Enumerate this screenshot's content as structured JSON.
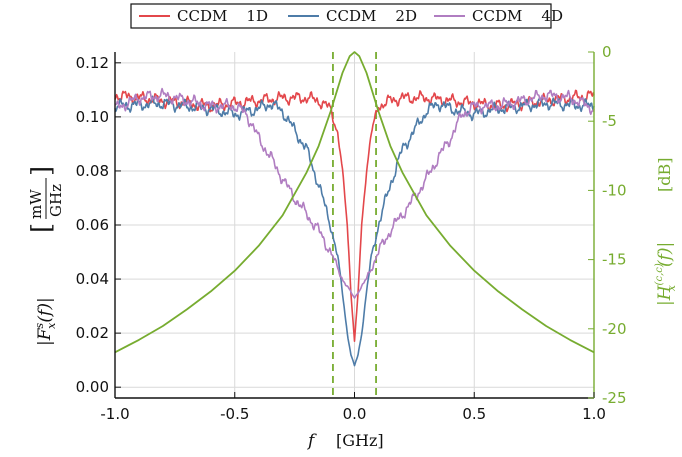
{
  "chart_data": {
    "type": "line",
    "x_range": [
      -1.0,
      1.0
    ],
    "x_ticks": [
      "-1.0",
      "-0.5",
      "0.0",
      "0.5",
      "1.0"
    ],
    "x_tick_values": [
      -1.0,
      -0.5,
      0.0,
      0.5,
      1.0
    ],
    "xlabel_var": "f",
    "xlabel_unit": "[GHz]",
    "y_left": {
      "range": [
        -0.004,
        0.124
      ],
      "ticks": [
        "0.00",
        "0.02",
        "0.04",
        "0.06",
        "0.08",
        "0.10",
        "0.12"
      ],
      "tick_values": [
        0.0,
        0.02,
        0.04,
        0.06,
        0.08,
        0.1,
        0.12
      ],
      "label_function": "|F",
      "label_sup": "s",
      "label_sub": "x",
      "label_arg": "(f)|",
      "unit_num": "mW",
      "unit_den": "GHz"
    },
    "y_right": {
      "range": [
        -25,
        0
      ],
      "ticks": [
        "0",
        "-5",
        "-10",
        "-15",
        "-20",
        "-25"
      ],
      "tick_values": [
        0,
        -5,
        -10,
        -15,
        -20,
        -25
      ],
      "label_function": "|H",
      "label_sup": "(c,c)",
      "label_sub": "x",
      "label_arg": "(f)|",
      "unit": "[dB]",
      "color": "#77ac30"
    },
    "grid": true,
    "legend_position": "top",
    "series": [
      {
        "name": "CCDM    1D",
        "color": "#e3474b",
        "axis": "left",
        "x": [
          -1.0,
          -0.8,
          -0.6,
          -0.4,
          -0.3,
          -0.2,
          -0.15,
          -0.1,
          -0.07,
          -0.05,
          -0.03,
          -0.015,
          0.0,
          0.015,
          0.03,
          0.05,
          0.07,
          0.1,
          0.15,
          0.2,
          0.3,
          0.4,
          0.6,
          0.8,
          1.0
        ],
        "y": [
          0.108,
          0.106,
          0.104,
          0.106,
          0.107,
          0.107,
          0.106,
          0.103,
          0.094,
          0.08,
          0.06,
          0.035,
          0.017,
          0.035,
          0.06,
          0.08,
          0.094,
          0.104,
          0.106,
          0.107,
          0.107,
          0.106,
          0.104,
          0.106,
          0.108
        ]
      },
      {
        "name": "CCDM    2D",
        "color": "#4e7ca8",
        "axis": "left",
        "x": [
          -1.0,
          -0.8,
          -0.6,
          -0.5,
          -0.4,
          -0.35,
          -0.3,
          -0.25,
          -0.2,
          -0.15,
          -0.1,
          -0.07,
          -0.05,
          -0.03,
          -0.015,
          0.0,
          0.015,
          0.03,
          0.05,
          0.07,
          0.1,
          0.15,
          0.2,
          0.25,
          0.3,
          0.35,
          0.4,
          0.5,
          0.6,
          0.8,
          1.0
        ],
        "y": [
          0.104,
          0.105,
          0.103,
          0.101,
          0.103,
          0.105,
          0.102,
          0.095,
          0.088,
          0.075,
          0.06,
          0.048,
          0.035,
          0.02,
          0.012,
          0.008,
          0.012,
          0.02,
          0.035,
          0.048,
          0.06,
          0.075,
          0.088,
          0.095,
          0.102,
          0.105,
          0.103,
          0.101,
          0.103,
          0.105,
          0.104
        ]
      },
      {
        "name": "CCDM    4D",
        "color": "#b07dc1",
        "axis": "left",
        "x": [
          -1.0,
          -0.9,
          -0.8,
          -0.7,
          -0.6,
          -0.5,
          -0.45,
          -0.4,
          -0.35,
          -0.3,
          -0.25,
          -0.2,
          -0.15,
          -0.1,
          -0.05,
          0.0,
          0.05,
          0.1,
          0.15,
          0.2,
          0.25,
          0.3,
          0.35,
          0.4,
          0.45,
          0.5,
          0.6,
          0.7,
          0.8,
          0.9,
          1.0
        ],
        "y": [
          0.103,
          0.107,
          0.108,
          0.106,
          0.104,
          0.104,
          0.101,
          0.092,
          0.085,
          0.077,
          0.07,
          0.064,
          0.058,
          0.05,
          0.04,
          0.033,
          0.04,
          0.05,
          0.058,
          0.064,
          0.07,
          0.077,
          0.085,
          0.092,
          0.101,
          0.104,
          0.104,
          0.106,
          0.108,
          0.107,
          0.103
        ]
      },
      {
        "name": "",
        "color": "#77ac30",
        "axis": "right",
        "x": [
          -1.0,
          -0.9,
          -0.8,
          -0.7,
          -0.6,
          -0.5,
          -0.4,
          -0.3,
          -0.2,
          -0.15,
          -0.1,
          -0.05,
          -0.02,
          0.0,
          0.02,
          0.05,
          0.1,
          0.15,
          0.2,
          0.3,
          0.4,
          0.5,
          0.6,
          0.7,
          0.8,
          0.9,
          1.0
        ],
        "y": [
          -21.7,
          -20.8,
          -19.8,
          -18.6,
          -17.3,
          -15.8,
          -14.0,
          -11.8,
          -8.7,
          -6.8,
          -4.3,
          -1.5,
          -0.3,
          0.0,
          -0.3,
          -1.5,
          -4.3,
          -6.8,
          -8.7,
          -11.8,
          -14.0,
          -15.8,
          -17.3,
          -18.6,
          -19.8,
          -20.8,
          -21.7
        ]
      }
    ],
    "vlines": {
      "x": [
        -0.09,
        0.09
      ],
      "color": "#77ac30",
      "style": "dashed"
    }
  }
}
